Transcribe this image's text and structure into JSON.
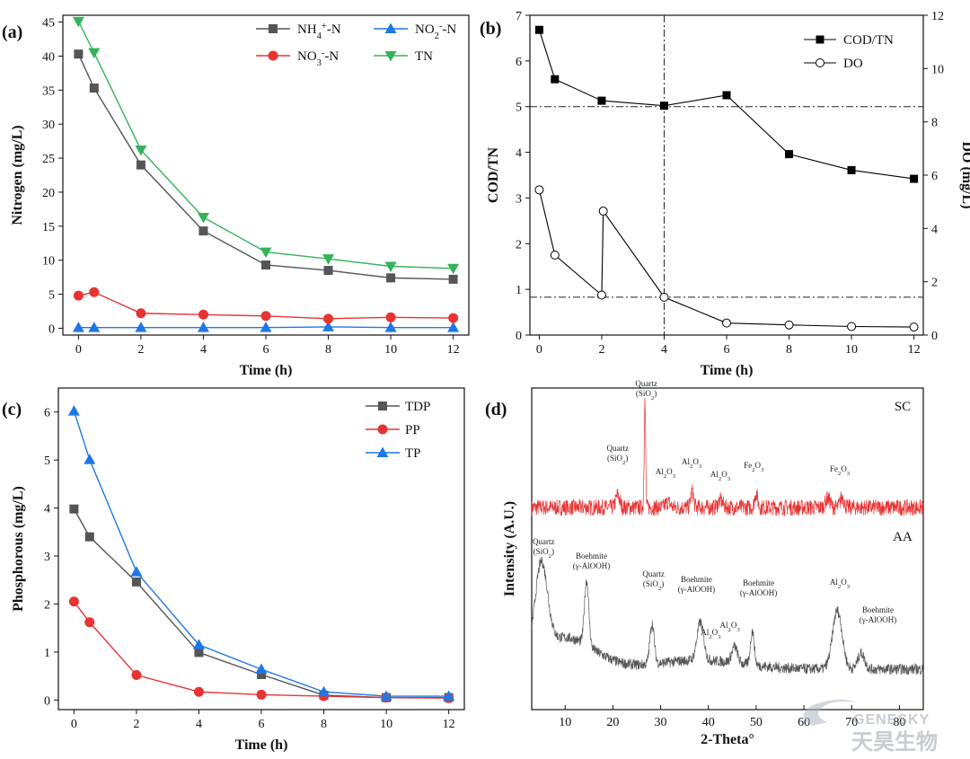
{
  "chart_data": [
    {
      "id": "a",
      "panel_label": "(a)",
      "type": "line",
      "xlabel": "Time (h)",
      "ylabel": "Nitrogen (mg/L)",
      "xlim": [
        -0.5,
        12.5
      ],
      "ylim": [
        -1,
        46
      ],
      "xticks": [
        0,
        2,
        4,
        6,
        8,
        10,
        12
      ],
      "yticks": [
        0,
        5,
        10,
        15,
        20,
        25,
        30,
        35,
        40,
        45
      ],
      "x": [
        0,
        0.5,
        2,
        4,
        6,
        8,
        10,
        12
      ],
      "legend_position": "top-right",
      "series": [
        {
          "name": "NH4+-N",
          "name_base": "NH",
          "name_sub": "4",
          "name_sup": "+",
          "name_tail": "-N",
          "color": "#555555",
          "marker": "square",
          "values": [
            40.3,
            35.3,
            24.0,
            14.3,
            9.3,
            8.5,
            7.4,
            7.2
          ]
        },
        {
          "name": "NO2--N",
          "name_base": "NO",
          "name_sub": "2",
          "name_sup": "-",
          "name_tail": "-N",
          "color": "#1f77e6",
          "marker": "triangle-up",
          "values": [
            0.1,
            0.1,
            0.1,
            0.1,
            0.1,
            0.2,
            0.1,
            0.1
          ]
        },
        {
          "name": "NO3--N",
          "name_base": "NO",
          "name_sub": "3",
          "name_sup": "-",
          "name_tail": "-N",
          "color": "#e83333",
          "marker": "circle",
          "values": [
            4.8,
            5.3,
            2.2,
            2.0,
            1.8,
            1.4,
            1.6,
            1.5
          ]
        },
        {
          "name": "TN",
          "name_base": "TN",
          "name_sub": "",
          "name_sup": "",
          "name_tail": "",
          "color": "#33b35a",
          "marker": "triangle-down",
          "values": [
            45.1,
            40.5,
            26.2,
            16.3,
            11.2,
            10.2,
            9.1,
            8.8
          ]
        }
      ]
    },
    {
      "id": "b",
      "panel_label": "(b)",
      "type": "line",
      "xlabel": "Time (h)",
      "ylabel": "COD/TN",
      "ylabel_right": "DO (mg/L)",
      "xlim": [
        -0.3,
        12.3
      ],
      "ylim": [
        0,
        7
      ],
      "ylim_right": [
        0,
        12
      ],
      "xticks": [
        0,
        2,
        4,
        6,
        8,
        10,
        12
      ],
      "yticks": [
        0,
        1,
        2,
        3,
        4,
        5,
        6,
        7
      ],
      "yticks_right": [
        0,
        2,
        4,
        6,
        8,
        10,
        12
      ],
      "x": [
        0,
        0.5,
        2,
        4,
        6,
        8,
        10,
        12
      ],
      "legend_position": "top-right",
      "reference_lines": {
        "x": 4,
        "y_left": 5.0,
        "y_right": 1.42
      },
      "series": [
        {
          "name": "COD/TN",
          "axis": "left",
          "color": "#000000",
          "marker": "square-filled",
          "values": [
            6.68,
            5.6,
            5.13,
            5.02,
            5.25,
            3.96,
            3.61,
            3.42
          ]
        },
        {
          "name": "DO",
          "axis": "right",
          "color": "#000000",
          "marker": "circle-open",
          "x": [
            0,
            0.5,
            2,
            2.05,
            4,
            6,
            8,
            10,
            12
          ],
          "values": [
            5.45,
            3.0,
            1.5,
            4.65,
            1.42,
            0.45,
            0.38,
            0.32,
            0.3
          ]
        }
      ]
    },
    {
      "id": "c",
      "panel_label": "(c)",
      "type": "line",
      "xlabel": "Time (h)",
      "ylabel": "Phosphorous (mg/L)",
      "xlim": [
        -0.5,
        12.5
      ],
      "ylim": [
        -0.2,
        6.5
      ],
      "xticks": [
        0,
        2,
        4,
        6,
        8,
        10,
        12
      ],
      "yticks": [
        0,
        1,
        2,
        3,
        4,
        5,
        6
      ],
      "x": [
        0,
        0.5,
        2,
        4,
        6,
        8,
        10,
        12
      ],
      "legend_position": "top-right",
      "series": [
        {
          "name": "TDP",
          "color": "#555555",
          "marker": "square",
          "values": [
            3.98,
            3.4,
            2.46,
            0.99,
            0.53,
            0.1,
            0.05,
            0.05
          ]
        },
        {
          "name": "PP",
          "color": "#e83333",
          "marker": "circle",
          "values": [
            2.05,
            1.62,
            0.52,
            0.17,
            0.11,
            0.08,
            0.05,
            0.04
          ]
        },
        {
          "name": "TP",
          "color": "#1f77e6",
          "marker": "triangle-up",
          "values": [
            6.02,
            5.01,
            2.67,
            1.15,
            0.64,
            0.17,
            0.08,
            0.08
          ]
        }
      ]
    },
    {
      "id": "d",
      "panel_label": "(d)",
      "type": "line",
      "xlabel": "2-Theta°",
      "ylabel": "Intensity (A.U.)",
      "xlim": [
        3,
        85
      ],
      "xticks": [
        10,
        20,
        30,
        40,
        50,
        60,
        70,
        80
      ],
      "series": [
        {
          "name": "SC",
          "color": "#e83333",
          "baseline": 30,
          "noise_amp": 9,
          "peaks": [
            [
              21.0,
              14,
              0.4
            ],
            [
              26.7,
              120,
              0.15
            ],
            [
              31.5,
              6,
              0.5
            ],
            [
              36.6,
              18,
              0.3
            ],
            [
              42.5,
              8,
              0.5
            ],
            [
              50.0,
              16,
              0.3
            ],
            [
              65.0,
              10,
              0.5
            ],
            [
              68.0,
              12,
              0.4
            ]
          ],
          "annotations": [
            {
              "x": 27.0,
              "lines": [
                "Quartz",
                "(SiO2)"
              ],
              "h": 124
            },
            {
              "x": 21.0,
              "lines": [
                "Quartz",
                "(SiO2)"
              ],
              "h": 52
            },
            {
              "x": 31.0,
              "lines": [
                "Al2O3"
              ],
              "h": 37
            },
            {
              "x": 36.5,
              "lines": [
                "Al2O3"
              ],
              "h": 48
            },
            {
              "x": 42.5,
              "lines": [
                "Al2O3"
              ],
              "h": 34
            },
            {
              "x": 49.5,
              "lines": [
                "Fe2O3"
              ],
              "h": 44
            },
            {
              "x": 67.5,
              "lines": [
                "Fe2O3"
              ],
              "h": 40
            }
          ]
        },
        {
          "name": "AA",
          "color": "#555555",
          "baseline": 14,
          "noise_amp": 6,
          "peaks": [
            [
              5.0,
              95,
              1.3
            ],
            [
              14.5,
              72,
              0.45
            ],
            [
              28.2,
              45,
              0.45
            ],
            [
              38.3,
              42,
              0.7
            ],
            [
              45.5,
              18,
              0.6
            ],
            [
              49.2,
              38,
              0.4
            ],
            [
              67.0,
              65,
              1.0
            ],
            [
              72.0,
              18,
              0.7
            ]
          ],
          "broad": [
            [
              10.0,
              35,
              6.0
            ],
            [
              38.0,
              10,
              9.0
            ]
          ],
          "annotations": [
            {
              "x": 5.5,
              "lines": [
                "Quartz",
                "(SiO2)"
              ],
              "h": 128
            },
            {
              "x": 15.5,
              "lines": [
                "Boehmite",
                "(γ-AlOOH)"
              ],
              "h": 112
            },
            {
              "x": 28.5,
              "lines": [
                "Quartz",
                "(SiO2)"
              ],
              "h": 92
            },
            {
              "x": 37.5,
              "lines": [
                "Boehmite",
                "(γ-AlOOH)"
              ],
              "h": 86
            },
            {
              "x": 40.5,
              "lines": [
                "Al2O3"
              ],
              "h": 38
            },
            {
              "x": 44.5,
              "lines": [
                "Al2O3"
              ],
              "h": 46
            },
            {
              "x": 50.5,
              "lines": [
                "Boehmite",
                "(γ-AlOOH)"
              ],
              "h": 82
            },
            {
              "x": 67.5,
              "lines": [
                "Al2O3"
              ],
              "h": 94
            },
            {
              "x": 75.5,
              "lines": [
                "Boehmite",
                "(γ-AlOOH)"
              ],
              "h": 52
            }
          ]
        }
      ]
    }
  ],
  "watermark": {
    "latin": "GENESKY",
    "chinese": "天昊生物"
  }
}
